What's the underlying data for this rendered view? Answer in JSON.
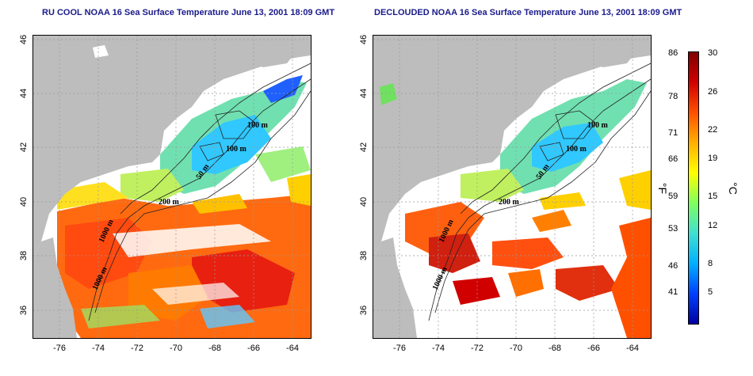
{
  "panels": [
    {
      "title": "RU COOL NOAA 16 Sea Surface Temperature June 13, 2001 18:09 GMT"
    },
    {
      "title": "DECLOUDED NOAA 16 Sea Surface Temperature June 13, 2001 18:09 GMT"
    }
  ],
  "axes": {
    "x_ticks": [
      "-76",
      "-74",
      "-72",
      "-70",
      "-68",
      "-66",
      "-64"
    ],
    "y_ticks": [
      "46",
      "44",
      "42",
      "40",
      "38",
      "36"
    ]
  },
  "contours": {
    "labels": [
      "100 m",
      "100 m",
      "50 m",
      "200 m",
      "1000 m",
      "1000 m"
    ]
  },
  "colorbar": {
    "fahrenheit_ticks": [
      "86",
      "78",
      "71",
      "66",
      "59",
      "53",
      "46",
      "41"
    ],
    "celsius_ticks": [
      "30",
      "26",
      "22",
      "19",
      "15",
      "12",
      "8",
      "5"
    ],
    "fahrenheit_unit": "°F",
    "celsius_unit": "°C",
    "colors": [
      "#0000a0",
      "#0040ff",
      "#00b0ff",
      "#40e0d0",
      "#80ff60",
      "#ffff00",
      "#ffb000",
      "#ff5000",
      "#d00000",
      "#800000"
    ]
  },
  "colors": {
    "land": "#bdbdbd",
    "cloud": "#ffffff",
    "title": "#1a1a8c"
  }
}
